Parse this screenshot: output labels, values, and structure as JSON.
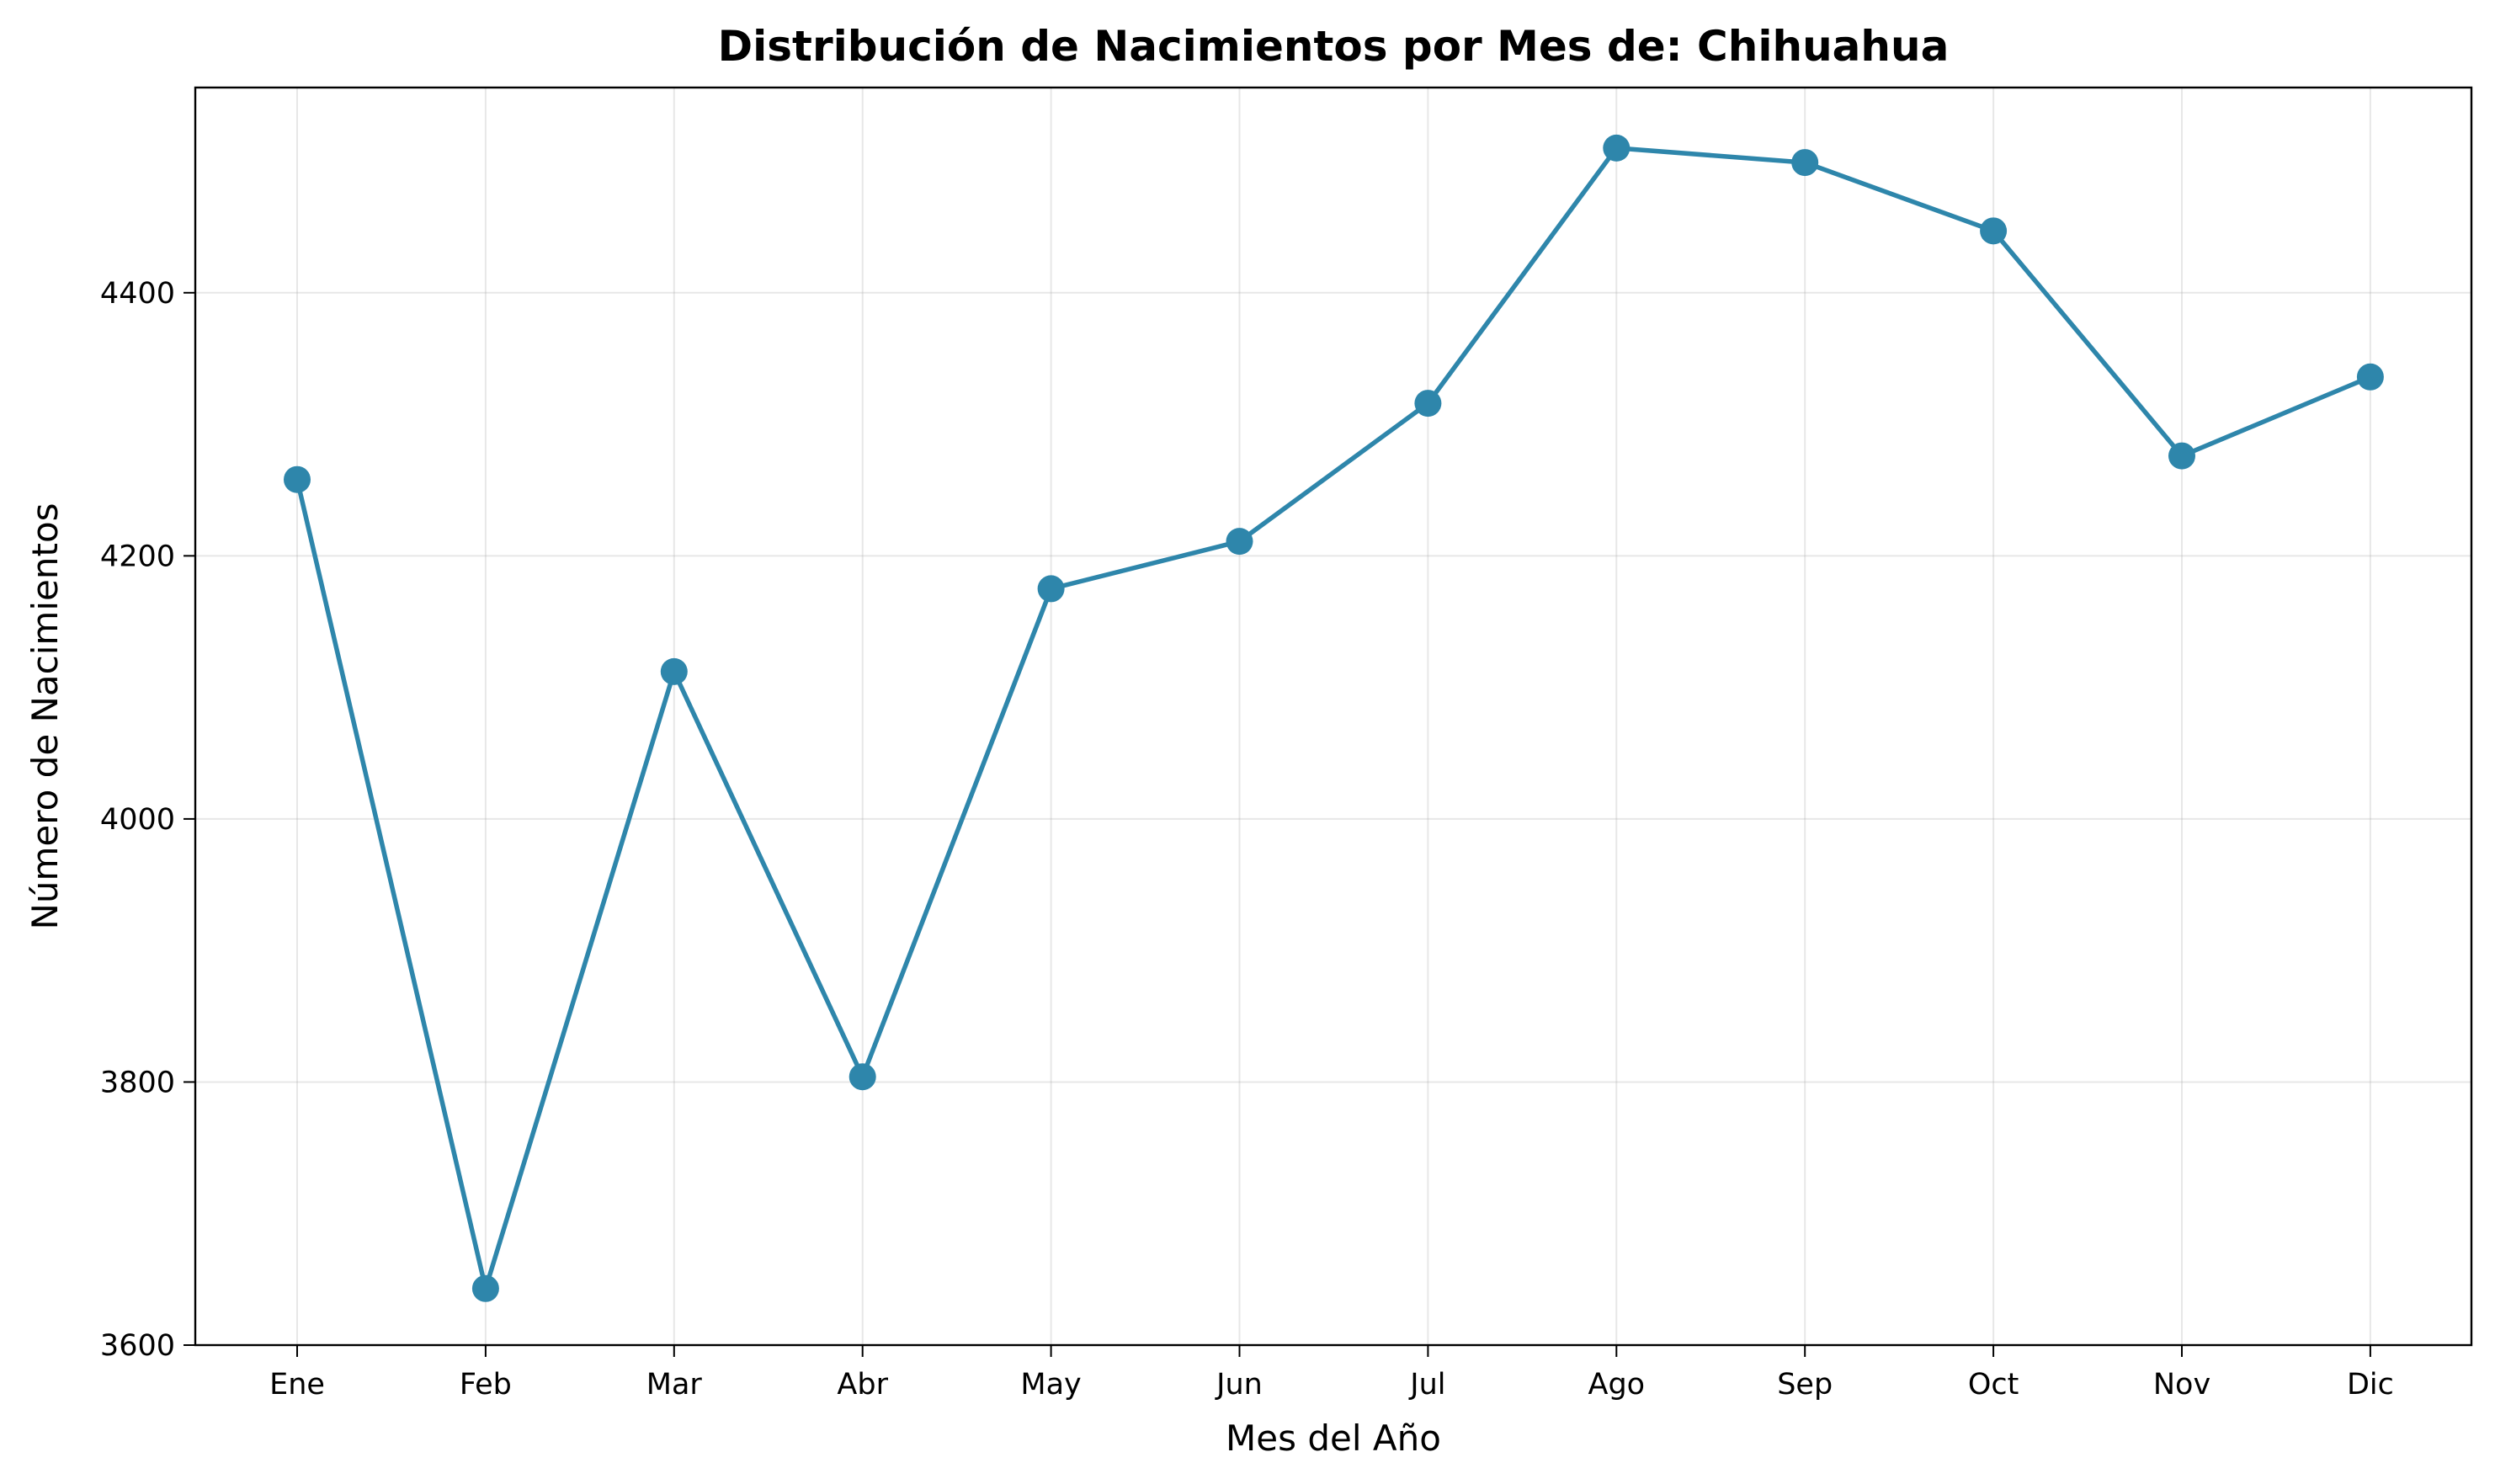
{
  "chart_data": {
    "type": "line",
    "title": "Distribución de Nacimientos por Mes de: Chihuahua",
    "xlabel": "Mes del Año",
    "ylabel": "Número de Nacimientos",
    "categories": [
      "Ene",
      "Feb",
      "Mar",
      "Abr",
      "May",
      "Jun",
      "Jul",
      "Ago",
      "Sep",
      "Oct",
      "Nov",
      "Dic"
    ],
    "series": [
      {
        "values": [
          4258,
          3643,
          4112,
          3804,
          4175,
          4211,
          4316,
          4510,
          4499,
          4447,
          4276,
          4336
        ],
        "color": "#2e86ab"
      }
    ],
    "yticks": [
      3600,
      3800,
      4000,
      4200,
      4400
    ],
    "ylim": [
      3600,
      4556
    ],
    "grid": true,
    "legend": "none"
  }
}
